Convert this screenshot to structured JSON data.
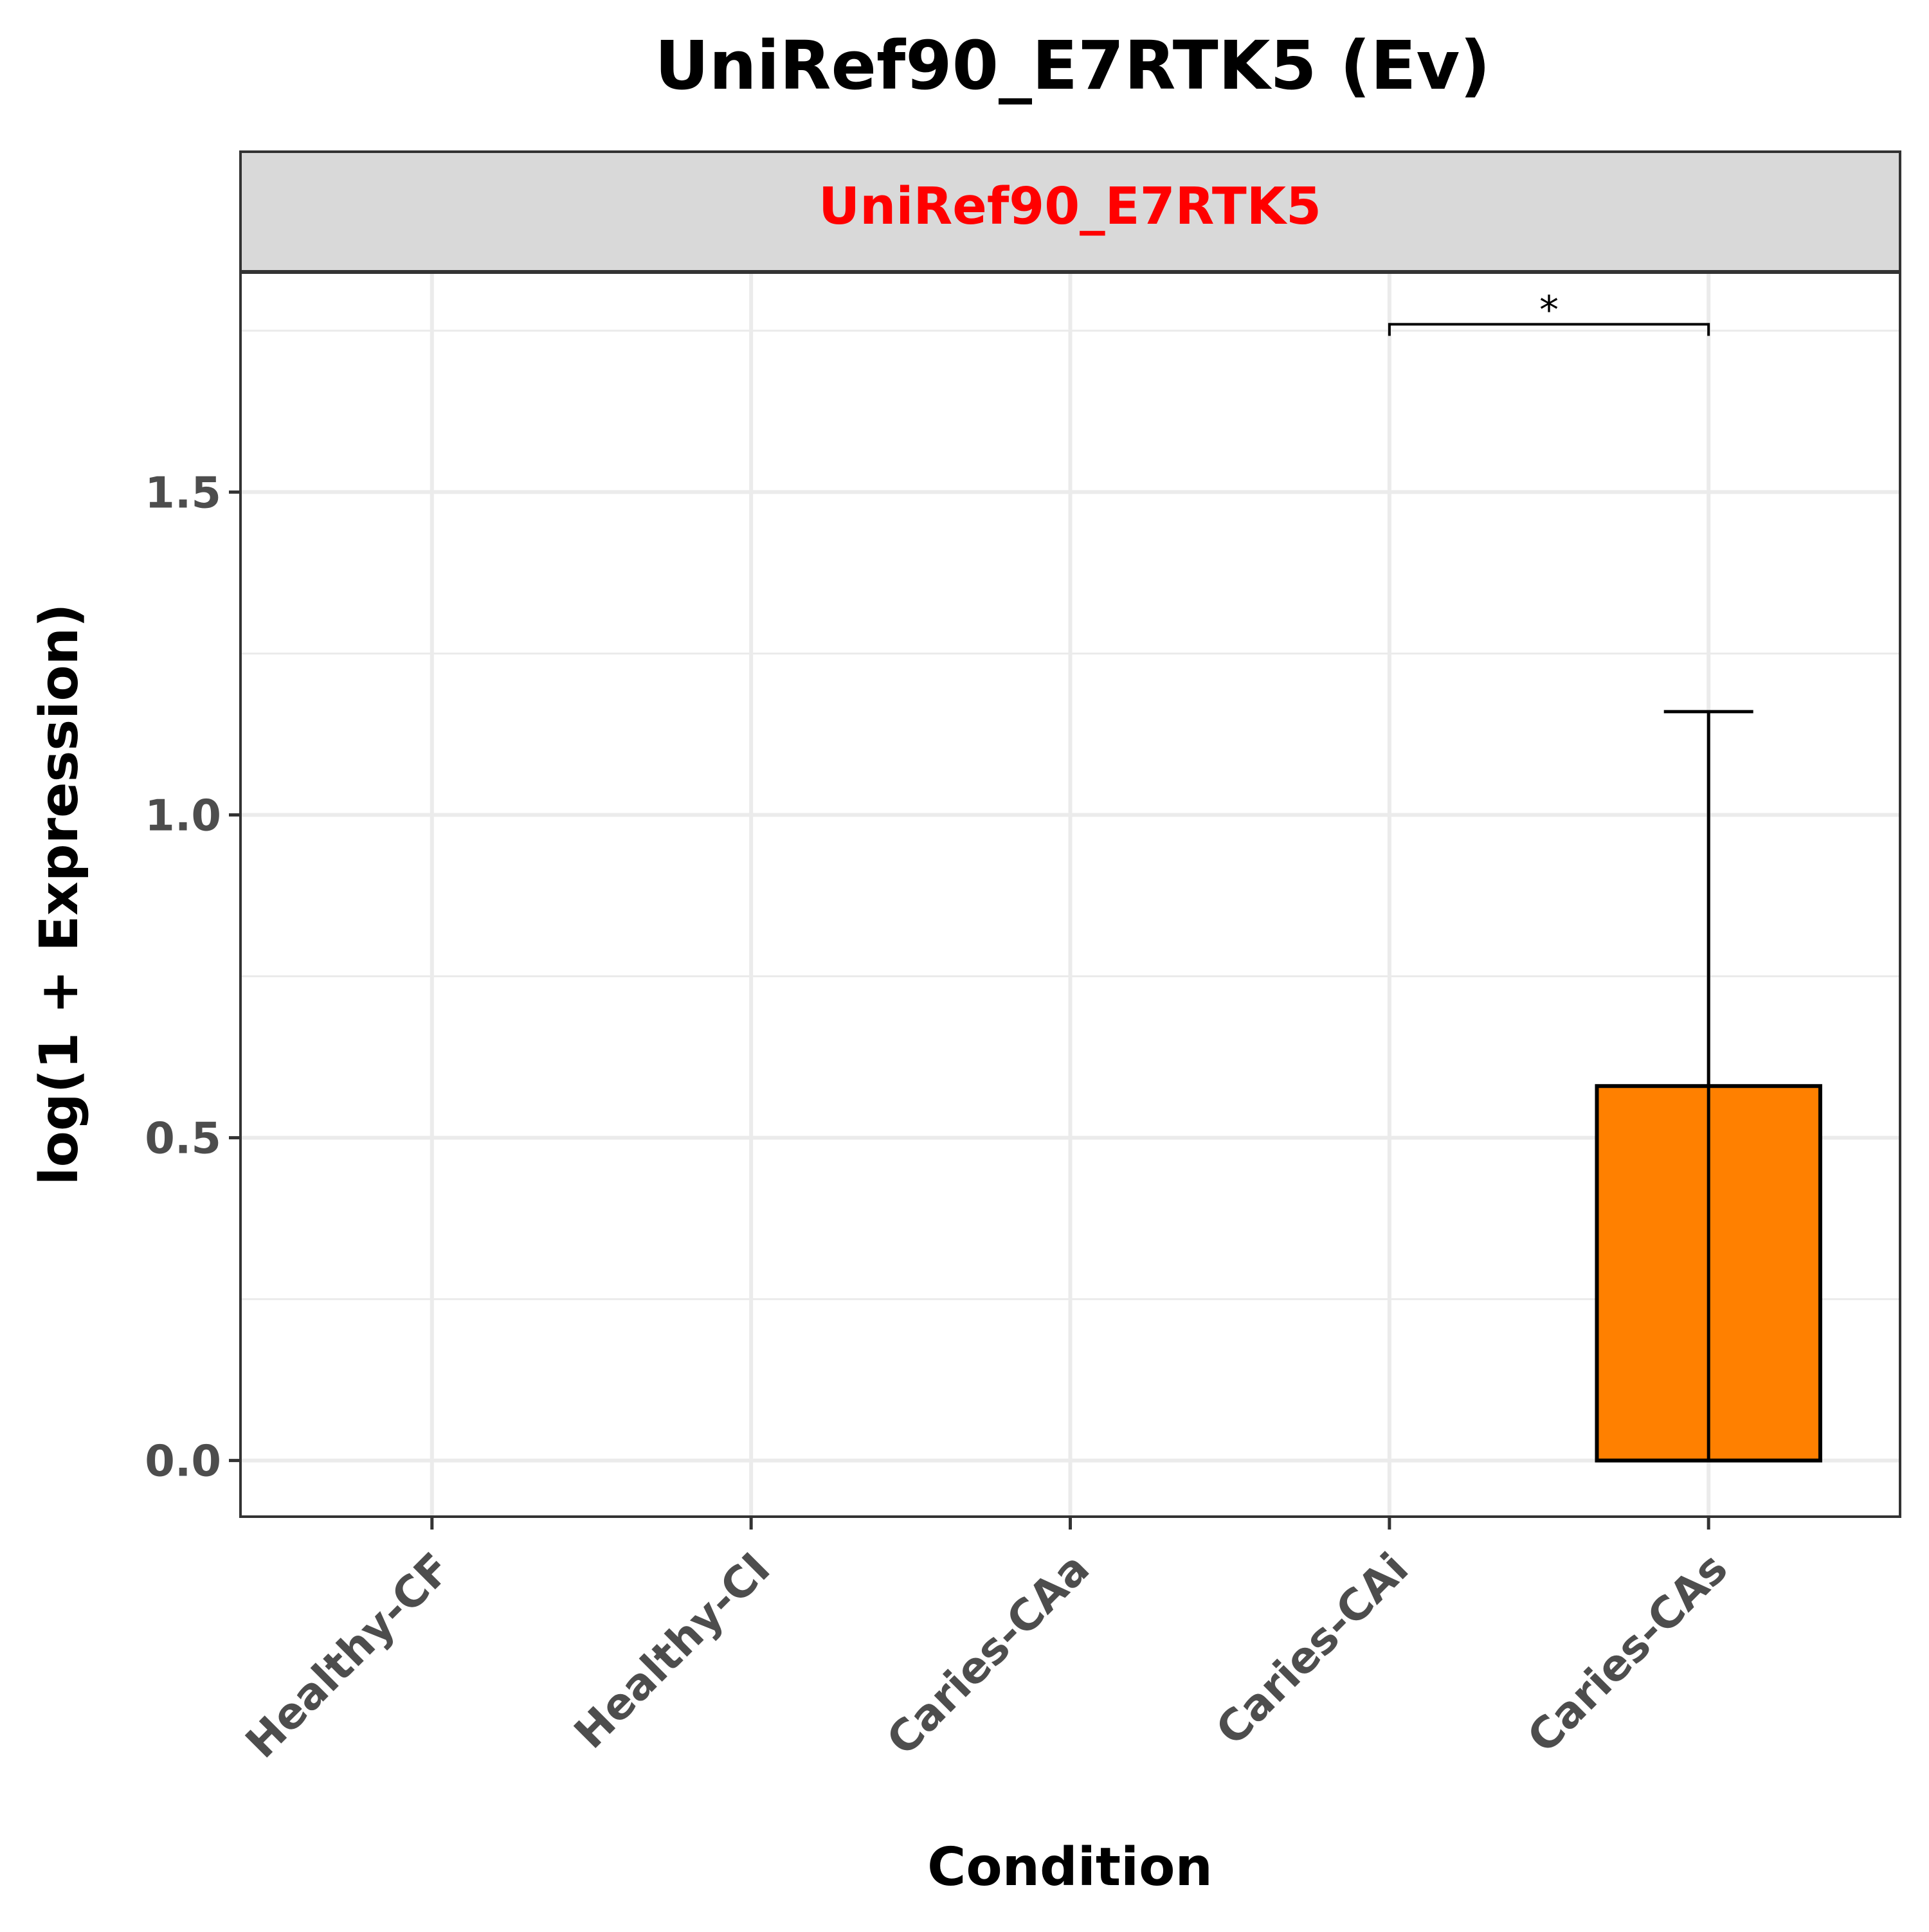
{
  "title": "UniRef90_E7RTK5 (Ev)",
  "strip_label": "UniRef90_E7RTK5",
  "colors": {
    "strip_text": "#ff0000",
    "strip_fill": "#d9d9d9",
    "bar_fill": "#ff8000",
    "bar_stroke": "#000000",
    "grid": "#ebebeb",
    "panel_border": "#333333",
    "tick_text": "#4d4d4d"
  },
  "chart_data": {
    "type": "bar",
    "title": "UniRef90_E7RTK5 (Ev)",
    "facet": "UniRef90_E7RTK5",
    "xlabel": "Condition",
    "ylabel": "log(1 + Expression)",
    "categories": [
      "Healthy-CF",
      "Healthy-CI",
      "Caries-CAa",
      "Caries-CAi",
      "Caries-CAs"
    ],
    "values": [
      0,
      0,
      0,
      0,
      0.58
    ],
    "error_upper": [
      0,
      0,
      0,
      0,
      1.16
    ],
    "error_lower": [
      0,
      0,
      0,
      0,
      0
    ],
    "yticks": [
      0.0,
      0.5,
      1.0,
      1.5
    ],
    "ytick_labels": [
      "0.0",
      "0.5",
      "1.0",
      "1.5"
    ],
    "ylim": [
      -0.087,
      1.84
    ],
    "grid": true,
    "legend": "none",
    "significance": [
      {
        "from": "Caries-CAi",
        "to": "Caries-CAs",
        "label": "*",
        "y": 1.76
      }
    ]
  }
}
